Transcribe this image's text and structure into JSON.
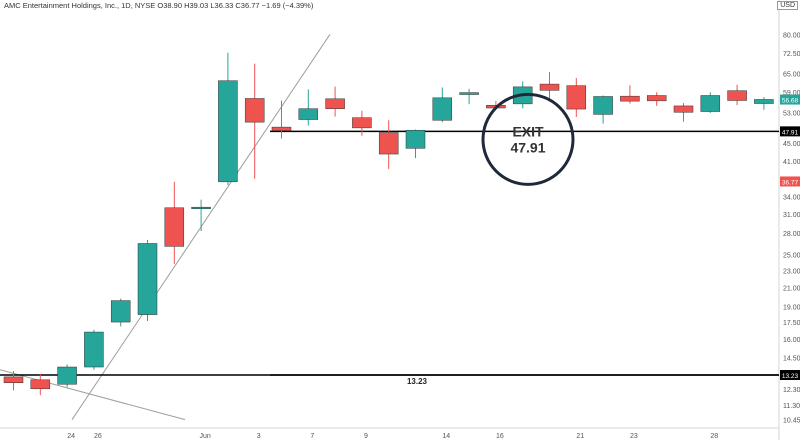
{
  "header": {
    "symbol_line": "AMC Entertainment Holdings, Inc., 1D, NYSE  O38.90  H39.03  L36.33  C36.77  −1.69 (−4.39%)",
    "currency": "USD"
  },
  "colors": {
    "up": "#26a69a",
    "down": "#ef5350",
    "level": "#000000",
    "trendline": "#9e9e9e",
    "last_price_badge": "#26a69a",
    "current_badge": "#ef5350"
  },
  "chart_data": {
    "type": "candlestick",
    "title": "AMC Entertainment Holdings, Inc., 1D, NYSE",
    "y_scale": "log",
    "ylim": [
      10.0,
      90.0
    ],
    "y_ticks": [
      "80.00",
      "72.50",
      "65.00",
      "59.00",
      "53.00",
      "47.91",
      "45.00",
      "41.00",
      "36.77",
      "34.00",
      "31.00",
      "28.00",
      "25.00",
      "23.00",
      "21.00",
      "19.00",
      "17.50",
      "16.00",
      "14.50",
      "13.23",
      "12.30",
      "11.30",
      "10.45"
    ],
    "x_ticks": [
      "24",
      "26",
      "Jun",
      "3",
      "7",
      "9",
      "14",
      "16",
      "21",
      "23",
      "28"
    ],
    "candles": [
      {
        "o": 13.1,
        "h": 13.5,
        "l": 12.2,
        "c": 12.7
      },
      {
        "o": 12.9,
        "h": 13.3,
        "l": 11.9,
        "c": 12.3
      },
      {
        "o": 12.6,
        "h": 14.0,
        "l": 12.4,
        "c": 13.8
      },
      {
        "o": 13.8,
        "h": 16.8,
        "l": 13.6,
        "c": 16.6
      },
      {
        "o": 17.5,
        "h": 19.8,
        "l": 17.1,
        "c": 19.6
      },
      {
        "o": 18.2,
        "h": 27.0,
        "l": 17.6,
        "c": 26.5
      },
      {
        "o": 32.0,
        "h": 36.7,
        "l": 23.8,
        "c": 26.1
      },
      {
        "o": 32.0,
        "h": 33.4,
        "l": 28.3,
        "c": 32.1
      },
      {
        "o": 36.7,
        "h": 72.6,
        "l": 36.1,
        "c": 62.6
      },
      {
        "o": 57.0,
        "h": 68.5,
        "l": 37.3,
        "c": 50.3
      },
      {
        "o": 49.0,
        "h": 56.4,
        "l": 46.1,
        "c": 48.1
      },
      {
        "o": 51.0,
        "h": 59.8,
        "l": 49.4,
        "c": 54.0
      },
      {
        "o": 56.9,
        "h": 60.7,
        "l": 51.8,
        "c": 54.0
      },
      {
        "o": 51.5,
        "h": 53.4,
        "l": 46.8,
        "c": 48.8
      },
      {
        "o": 47.6,
        "h": 50.8,
        "l": 39.3,
        "c": 42.5
      },
      {
        "o": 43.8,
        "h": 48.4,
        "l": 41.6,
        "c": 48.2
      },
      {
        "o": 50.8,
        "h": 60.4,
        "l": 50.3,
        "c": 57.2
      },
      {
        "o": 58.2,
        "h": 60.0,
        "l": 55.3,
        "c": 58.8
      },
      {
        "o": 55.0,
        "h": 56.3,
        "l": 53.8,
        "c": 54.2
      },
      {
        "o": 55.4,
        "h": 62.4,
        "l": 54.1,
        "c": 60.6
      },
      {
        "o": 61.5,
        "h": 65.5,
        "l": 56.7,
        "c": 59.5
      },
      {
        "o": 61.0,
        "h": 63.5,
        "l": 51.7,
        "c": 53.9
      },
      {
        "o": 52.4,
        "h": 57.9,
        "l": 49.9,
        "c": 57.6
      },
      {
        "o": 57.7,
        "h": 61.1,
        "l": 55.5,
        "c": 56.2
      },
      {
        "o": 57.9,
        "h": 58.9,
        "l": 54.8,
        "c": 56.3
      },
      {
        "o": 54.8,
        "h": 55.6,
        "l": 50.4,
        "c": 53.0
      },
      {
        "o": 53.2,
        "h": 58.9,
        "l": 52.8,
        "c": 57.9
      },
      {
        "o": 59.4,
        "h": 61.3,
        "l": 55.0,
        "c": 56.4
      },
      {
        "o": 55.5,
        "h": 57.4,
        "l": 53.7,
        "c": 56.7
      }
    ],
    "levels": [
      {
        "price": 47.91,
        "label": "EXIT\n47.91"
      },
      {
        "price": 13.23,
        "label": "13.23"
      }
    ],
    "price_badges": [
      {
        "price": 56.68,
        "label": "56.68",
        "kind": "last"
      },
      {
        "price": 47.91,
        "label": "47.91",
        "kind": "level"
      },
      {
        "price": 36.77,
        "label": "36.77",
        "kind": "current"
      },
      {
        "price": 13.23,
        "label": "13.23",
        "kind": "level"
      }
    ],
    "annotations": [
      {
        "text_line1": "EXIT",
        "text_line2": "47.91",
        "shape": "circle",
        "anchor_price": 47.91
      }
    ],
    "trendlines": [
      {
        "from": {
          "price": 10.45
        },
        "to": {
          "price": 80.0
        },
        "note": "rising support"
      },
      {
        "from": {
          "price": 13.6
        },
        "to": {
          "price": 10.45
        },
        "note": "falling line"
      }
    ]
  }
}
